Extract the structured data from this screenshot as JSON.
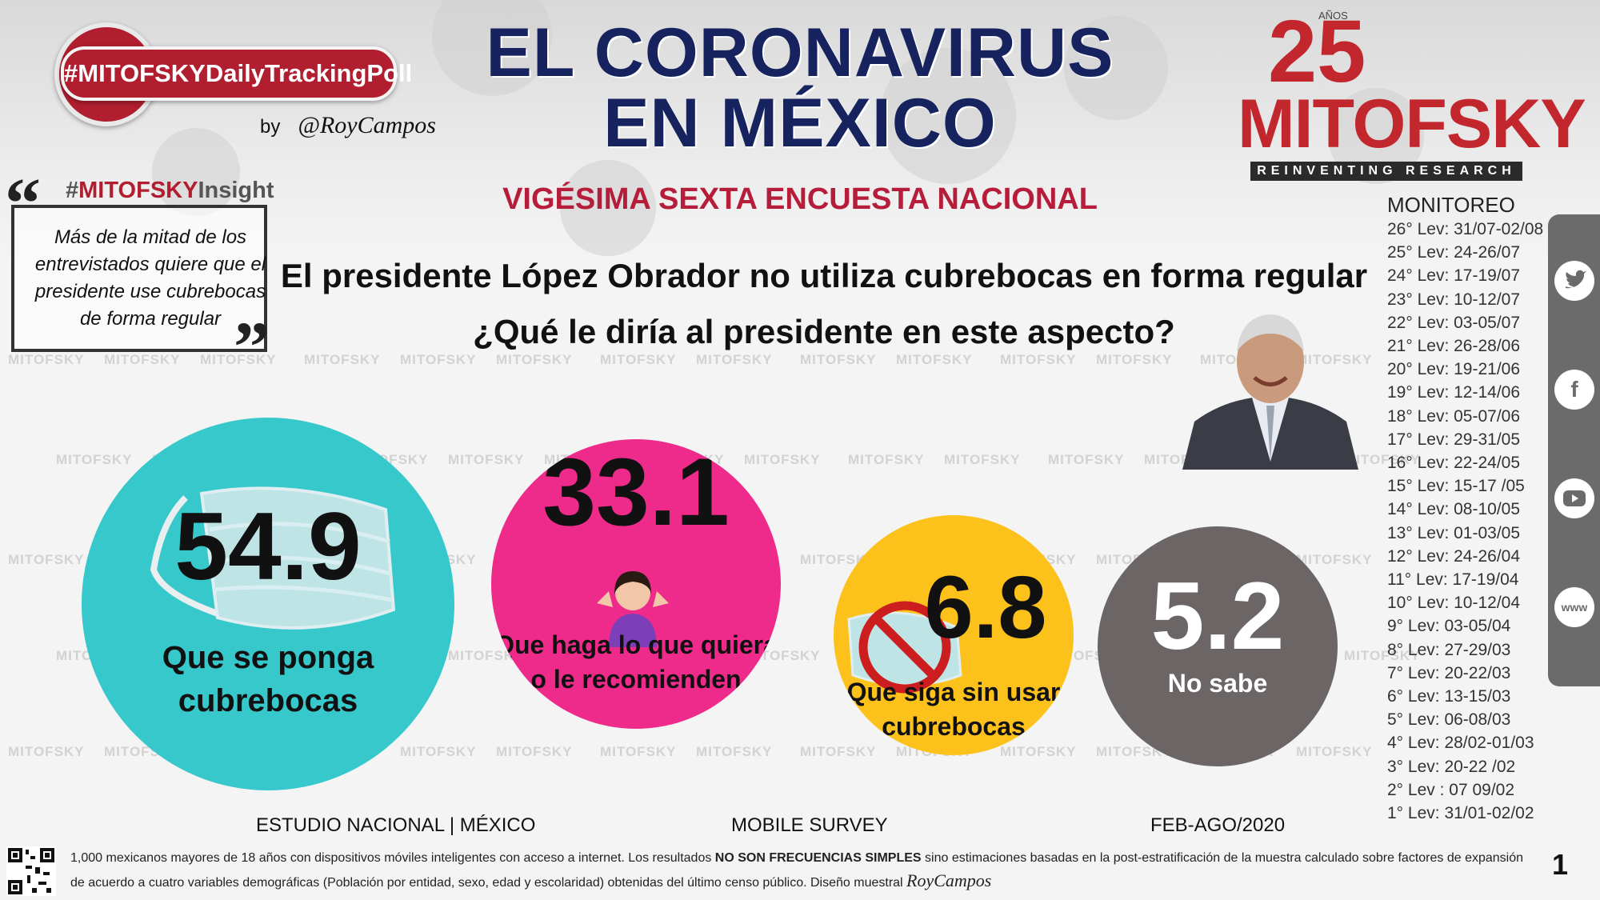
{
  "header": {
    "hashtag": "#MITOFSKYDailyTrackingPoll",
    "by": "by",
    "author": "@RoyCampos",
    "title_line1": "EL CORONAVIRUS",
    "title_line2": "EN MÉXICO",
    "subtitle": "VIGÉSIMA SEXTA ENCUESTA NACIONAL"
  },
  "logo": {
    "number": "25",
    "anos": "AÑOS",
    "brand": "MITOFSKY",
    "tagline": "REINVENTING RESEARCH"
  },
  "insight": {
    "label_prefix": "#",
    "label_brand": "MITOFSKY",
    "label_suffix": "Insight",
    "text": "Más de la mitad de los entrevistados quiere que el presidente use  cubrebocas de forma regular"
  },
  "question": {
    "line1": "El presidente López Obrador no utiliza cubrebocas en forma regular",
    "line2": "¿Qué le diría al presidente en este aspecto?"
  },
  "chart_data": {
    "type": "bubble",
    "categories": [
      "Que se ponga cubrebocas",
      "Que haga lo que quiera o le recomienden",
      "Que siga sin usar cubrebocas",
      "No sabe"
    ],
    "values": [
      54.9,
      33.1,
      6.8,
      5.2
    ],
    "labels": [
      [
        "Que se ponga",
        "cubrebocas"
      ],
      [
        "Que haga lo que quiera",
        "o le recomienden"
      ],
      [
        "Que siga sin usar",
        "cubrebocas"
      ],
      [
        "No sabe"
      ]
    ],
    "colors": [
      "#36c8cb",
      "#ee2a8a",
      "#fcc21b",
      "#6b6566"
    ]
  },
  "monitoring": {
    "title": "MONITOREO",
    "items": [
      "26° Lev: 31/07-02/08",
      "25° Lev: 24-26/07",
      "24° Lev: 17-19/07",
      "23° Lev: 10-12/07",
      "22° Lev: 03-05/07",
      "21° Lev: 26-28/06",
      "20° Lev: 19-21/06",
      "19° Lev: 12-14/06",
      "18° Lev: 05-07/06",
      "17° Lev: 29-31/05",
      "16° Lev: 22-24/05",
      "15° Lev: 15-17 /05",
      "14° Lev: 08-10/05",
      "13° Lev: 01-03/05",
      "12° Lev: 24-26/04",
      "11° Lev: 17-19/04",
      "10° Lev: 10-12/04",
      "9° Lev: 03-05/04",
      "8° Lev: 27-29/03",
      "7° Lev: 20-22/03",
      "6° Lev: 13-15/03",
      "5° Lev: 06-08/03",
      "4° Lev: 28/02-01/03",
      "3° Lev: 20-22 /02",
      "2° Lev : 07 09/02",
      "1° Lev: 31/01-02/02"
    ]
  },
  "social": {
    "twitter": "twitter-icon",
    "facebook": "facebook-icon",
    "youtube": "youtube-icon",
    "web": "www"
  },
  "watermark": "MITOFSKY",
  "footer": {
    "study": "ESTUDIO NACIONAL | MÉXICO",
    "method": "MOBILE SURVEY",
    "period": "FEB-AGO/2020",
    "note_part1": "1,000 mexicanos mayores de 18 años con dispositivos móviles inteligentes con acceso a internet. Los resultados ",
    "note_bold": "NO SON FRECUENCIAS SIMPLES",
    "note_part2": " sino estimaciones basadas en la post-estratificación de la muestra calculado sobre factores de expansión de acuerdo a cuatro variables demográficas (Población por entidad, sexo, edad y escolaridad) obtenidas del último censo público. Diseño muestral ",
    "signature": "RoyCampos",
    "page": "1"
  },
  "colors": {
    "title": "#16235e",
    "accent_red": "#b01e2f",
    "brand_red": "#c1272d"
  }
}
